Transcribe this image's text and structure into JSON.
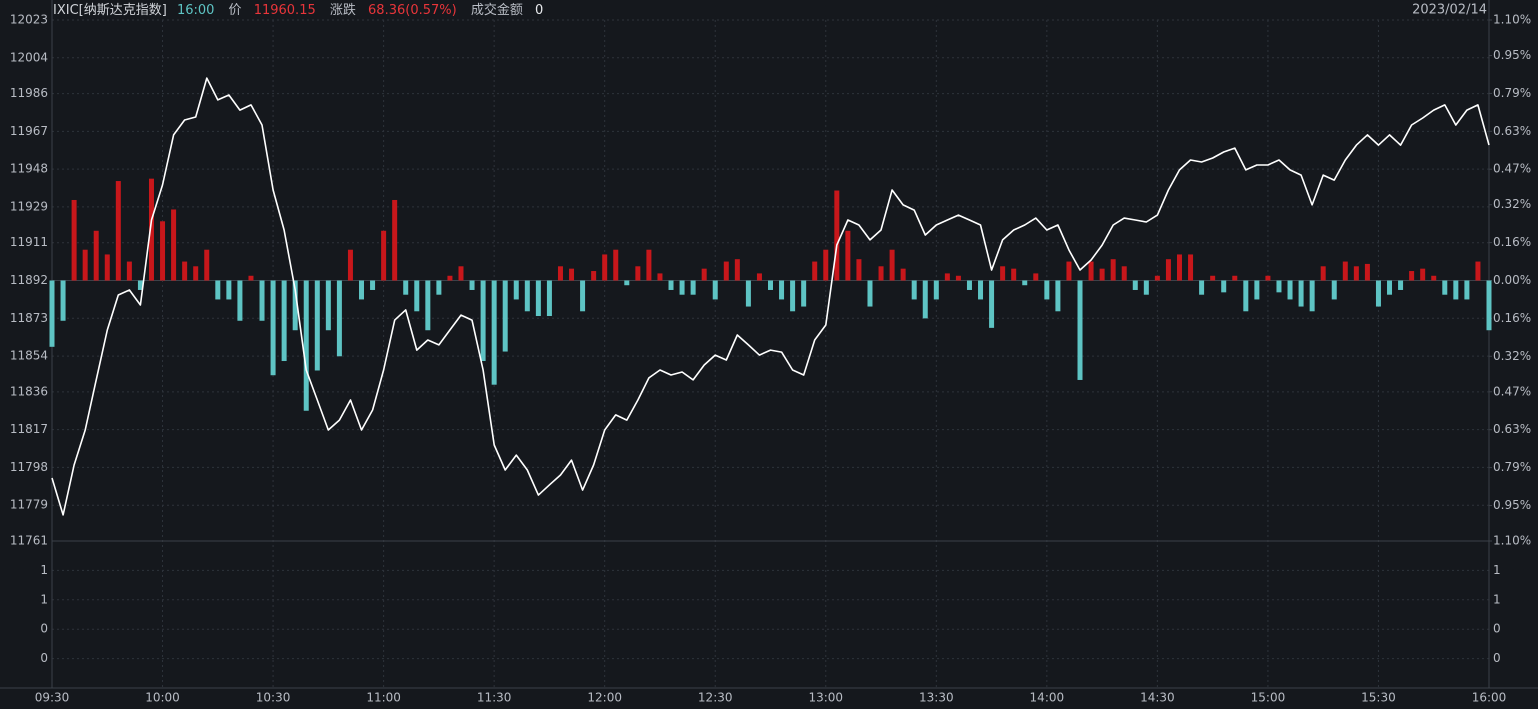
{
  "chart_data": {
    "type": "line",
    "header": {
      "title": "IXIC[纳斯达克指数]",
      "time": "16:00",
      "price_label": "价",
      "price": 11960.15,
      "change_label": "涨跌",
      "change": "68.36(0.57%)",
      "turnover_label": "成交金额",
      "turnover": 0,
      "date": "2023/02/14"
    },
    "x": [
      "09:30",
      "09:33",
      "09:36",
      "09:39",
      "09:42",
      "09:45",
      "09:48",
      "09:51",
      "09:54",
      "09:57",
      "10:00",
      "10:03",
      "10:06",
      "10:09",
      "10:12",
      "10:15",
      "10:18",
      "10:21",
      "10:24",
      "10:27",
      "10:30",
      "10:33",
      "10:36",
      "10:39",
      "10:42",
      "10:45",
      "10:48",
      "10:51",
      "10:54",
      "10:57",
      "11:00",
      "11:03",
      "11:06",
      "11:09",
      "11:12",
      "11:15",
      "11:18",
      "11:21",
      "11:24",
      "11:27",
      "11:30",
      "11:33",
      "11:36",
      "11:39",
      "11:42",
      "11:45",
      "11:48",
      "11:51",
      "11:54",
      "11:57",
      "12:00",
      "12:03",
      "12:06",
      "12:09",
      "12:12",
      "12:15",
      "12:18",
      "12:21",
      "12:24",
      "12:27",
      "12:30",
      "12:33",
      "12:36",
      "12:39",
      "12:42",
      "12:45",
      "12:48",
      "12:51",
      "12:54",
      "12:57",
      "13:00",
      "13:03",
      "13:06",
      "13:09",
      "13:12",
      "13:15",
      "13:18",
      "13:21",
      "13:24",
      "13:27",
      "13:30",
      "13:33",
      "13:36",
      "13:39",
      "13:42",
      "13:45",
      "13:48",
      "13:51",
      "13:54",
      "13:57",
      "14:00",
      "14:03",
      "14:06",
      "14:09",
      "14:12",
      "14:15",
      "14:18",
      "14:21",
      "14:24",
      "14:27",
      "14:30",
      "14:33",
      "14:36",
      "14:39",
      "14:42",
      "14:45",
      "14:48",
      "14:51",
      "14:54",
      "14:57",
      "15:00",
      "15:03",
      "15:06",
      "15:09",
      "15:12",
      "15:15",
      "15:18",
      "15:21",
      "15:24",
      "15:27",
      "15:30",
      "15:33",
      "15:36",
      "15:39",
      "15:42",
      "15:45",
      "15:48",
      "15:51",
      "15:54",
      "15:57",
      "16:00"
    ],
    "series": [
      {
        "type": "line",
        "color": "#ffffff",
        "values": [
          11792.7,
          11774.1,
          11799.2,
          11816.8,
          11842.0,
          11867.1,
          11884.7,
          11887.2,
          11879.7,
          11922.4,
          11940.0,
          11965.2,
          11972.7,
          11974.2,
          11993.8,
          11982.8,
          11985.3,
          11977.7,
          11980.3,
          11970.2,
          11937.5,
          11917.4,
          11887.2,
          11847.0,
          11831.9,
          11816.8,
          11821.8,
          11831.9,
          11816.8,
          11826.9,
          11847.0,
          11872.1,
          11877.2,
          11857.0,
          11862.1,
          11859.6,
          11867.1,
          11874.6,
          11872.1,
          11847.0,
          11809.3,
          11796.7,
          11804.2,
          11796.7,
          11784.1,
          11789.2,
          11794.2,
          11801.7,
          11786.6,
          11799.2,
          11816.8,
          11824.4,
          11821.8,
          11831.9,
          11843.0,
          11847.0,
          11844.5,
          11846.0,
          11842.0,
          11849.5,
          11854.5,
          11852.0,
          11864.6,
          11859.6,
          11854.5,
          11857.0,
          11856.0,
          11847.0,
          11844.5,
          11862.1,
          11869.6,
          11909.8,
          11922.4,
          11919.9,
          11912.4,
          11917.4,
          11937.5,
          11930.0,
          11927.4,
          11914.9,
          11919.9,
          11922.4,
          11924.9,
          11922.4,
          11919.9,
          11897.3,
          11912.4,
          11917.4,
          11919.9,
          11923.4,
          11917.4,
          11919.9,
          11907.3,
          11897.3,
          11902.3,
          11909.8,
          11919.9,
          11923.4,
          11922.4,
          11921.4,
          11924.9,
          11937.5,
          11947.6,
          11952.6,
          11951.6,
          11953.6,
          11956.6,
          11958.6,
          11947.6,
          11950.1,
          11950.1,
          11952.6,
          11947.6,
          11945.0,
          11930.0,
          11945.0,
          11942.5,
          11952.6,
          11960.1,
          11965.2,
          11960.1,
          11965.2,
          11960.1,
          11970.2,
          11973.7,
          11977.7,
          11980.3,
          11970.2,
          11977.7,
          11980.3,
          11960.15
        ]
      },
      {
        "type": "bar",
        "axis": "y2",
        "color": "#c8171b",
        "negative_color": "#5ec4c4",
        "values": [
          -0.28,
          -0.17,
          0.34,
          0.13,
          0.21,
          0.11,
          0.42,
          0.08,
          -0.04,
          0.43,
          0.25,
          0.3,
          0.08,
          0.06,
          0.13,
          -0.08,
          -0.08,
          -0.17,
          0.02,
          -0.17,
          -0.4,
          -0.34,
          -0.21,
          -0.55,
          -0.38,
          -0.21,
          -0.32,
          0.13,
          -0.08,
          -0.04,
          0.21,
          0.34,
          -0.06,
          -0.13,
          -0.21,
          -0.06,
          0.02,
          0.06,
          -0.04,
          -0.34,
          -0.44,
          -0.3,
          -0.08,
          -0.13,
          -0.15,
          -0.15,
          0.06,
          0.05,
          -0.13,
          0.04,
          0.11,
          0.13,
          -0.02,
          0.06,
          0.13,
          0.03,
          -0.04,
          -0.06,
          -0.06,
          0.05,
          -0.08,
          0.08,
          0.09,
          -0.11,
          0.03,
          -0.04,
          -0.08,
          -0.13,
          -0.11,
          0.08,
          0.13,
          0.38,
          0.21,
          0.09,
          -0.11,
          0.06,
          0.13,
          0.05,
          -0.08,
          -0.16,
          -0.08,
          0.03,
          0.02,
          -0.04,
          -0.08,
          -0.2,
          0.06,
          0.05,
          -0.02,
          0.03,
          -0.08,
          -0.13,
          0.08,
          -0.42,
          0.08,
          0.05,
          0.09,
          0.06,
          -0.04,
          -0.06,
          0.02,
          0.09,
          0.11,
          0.11,
          -0.06,
          0.02,
          -0.05,
          0.02,
          -0.13,
          -0.08,
          0.02,
          -0.05,
          -0.08,
          -0.11,
          -0.13,
          0.06,
          -0.08,
          0.08,
          0.06,
          0.07,
          -0.11,
          -0.06,
          -0.04,
          0.04,
          0.05,
          0.02,
          -0.06,
          -0.08,
          -0.08,
          0.08,
          -0.21
        ]
      }
    ],
    "ylim": [
      11761,
      12023
    ],
    "yticks": [
      12023,
      12004,
      11986,
      11967,
      11948,
      11929,
      11911,
      11892,
      11873,
      11854,
      11836,
      11817,
      11798,
      11779,
      11761
    ],
    "y2lim": [
      -1.1,
      1.1
    ],
    "y2ticks": [
      {
        "value": 1.1,
        "label": "1.10%"
      },
      {
        "value": 0.95,
        "label": "0.95%"
      },
      {
        "value": 0.79,
        "label": "0.79%"
      },
      {
        "value": 0.63,
        "label": "0.63%"
      },
      {
        "value": 0.47,
        "label": "0.47%"
      },
      {
        "value": 0.32,
        "label": "0.32%"
      },
      {
        "value": 0.16,
        "label": "0.16%"
      },
      {
        "value": 0,
        "label": "0.00%"
      },
      {
        "value": -0.16,
        "label": "0.16%"
      },
      {
        "value": -0.32,
        "label": "0.32%"
      },
      {
        "value": -0.47,
        "label": "0.47%"
      },
      {
        "value": -0.63,
        "label": "0.63%"
      },
      {
        "value": -0.79,
        "label": "0.79%"
      },
      {
        "value": -0.95,
        "label": "0.95%"
      },
      {
        "value": -1.1,
        "label": "1.10%"
      }
    ],
    "xticks": [
      "09:30",
      "10:00",
      "10:30",
      "11:00",
      "11:30",
      "12:00",
      "12:30",
      "13:00",
      "13:30",
      "14:00",
      "14:30",
      "15:00",
      "15:30",
      "16:00"
    ],
    "grid": true,
    "volume_panel": {
      "ylim": [
        0,
        1.5
      ],
      "yticks": [
        {
          "value": 1.2,
          "label": "1"
        },
        {
          "value": 0.9,
          "label": "1"
        },
        {
          "value": 0.6,
          "label": "0"
        },
        {
          "value": 0.3,
          "label": "0"
        }
      ]
    }
  }
}
